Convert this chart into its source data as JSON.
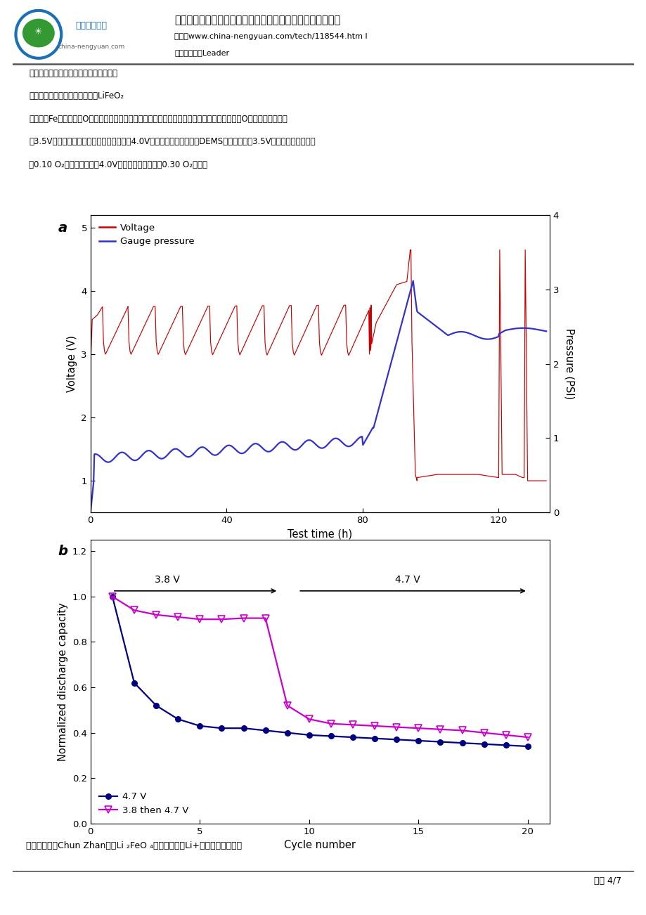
{
  "title": "超高容量正极材料研究重大突破：阴、阳离子共氧化机理研究",
  "link": "链接：www.china-nengyuan.com/tech/118544.htm l",
  "source": "来源：新能源Leader",
  "page": "页面 4/7",
  "chart_a": {
    "label": "a",
    "voltage_color": "#cc0000",
    "pressure_color": "#3333cc",
    "ylabel_left": "Voltage (V)",
    "ylabel_right": "Pressure (PSI)",
    "xlabel": "Test time (h)",
    "legend_voltage": "Voltage",
    "legend_pressure": "Gauge pressure",
    "xlim": [
      0,
      135
    ],
    "ylim_left": [
      0.5,
      5.2
    ],
    "ylim_right": [
      0,
      4
    ],
    "xticks": [
      0,
      40,
      80,
      120
    ],
    "yticks_left": [
      1,
      2,
      3,
      4,
      5
    ],
    "yticks_right": [
      0,
      1,
      2,
      3,
      4
    ]
  },
  "chart_b": {
    "label": "b",
    "line1_color": "#000080",
    "line2_color": "#cc00cc",
    "ylabel": "Normalized discharge capacity",
    "xlabel": "Cycle number",
    "legend1": "4.7 V",
    "legend2": "3.8 then 4.7 V",
    "xlim": [
      0,
      21
    ],
    "ylim": [
      0.0,
      1.25
    ],
    "xticks": [
      0,
      5,
      10,
      15,
      20
    ],
    "yticks": [
      0.0,
      0.2,
      0.4,
      0.6,
      0.8,
      1.0,
      1.2
    ],
    "annotation1": "3.8 V",
    "annotation2": "4.7 V"
  }
}
